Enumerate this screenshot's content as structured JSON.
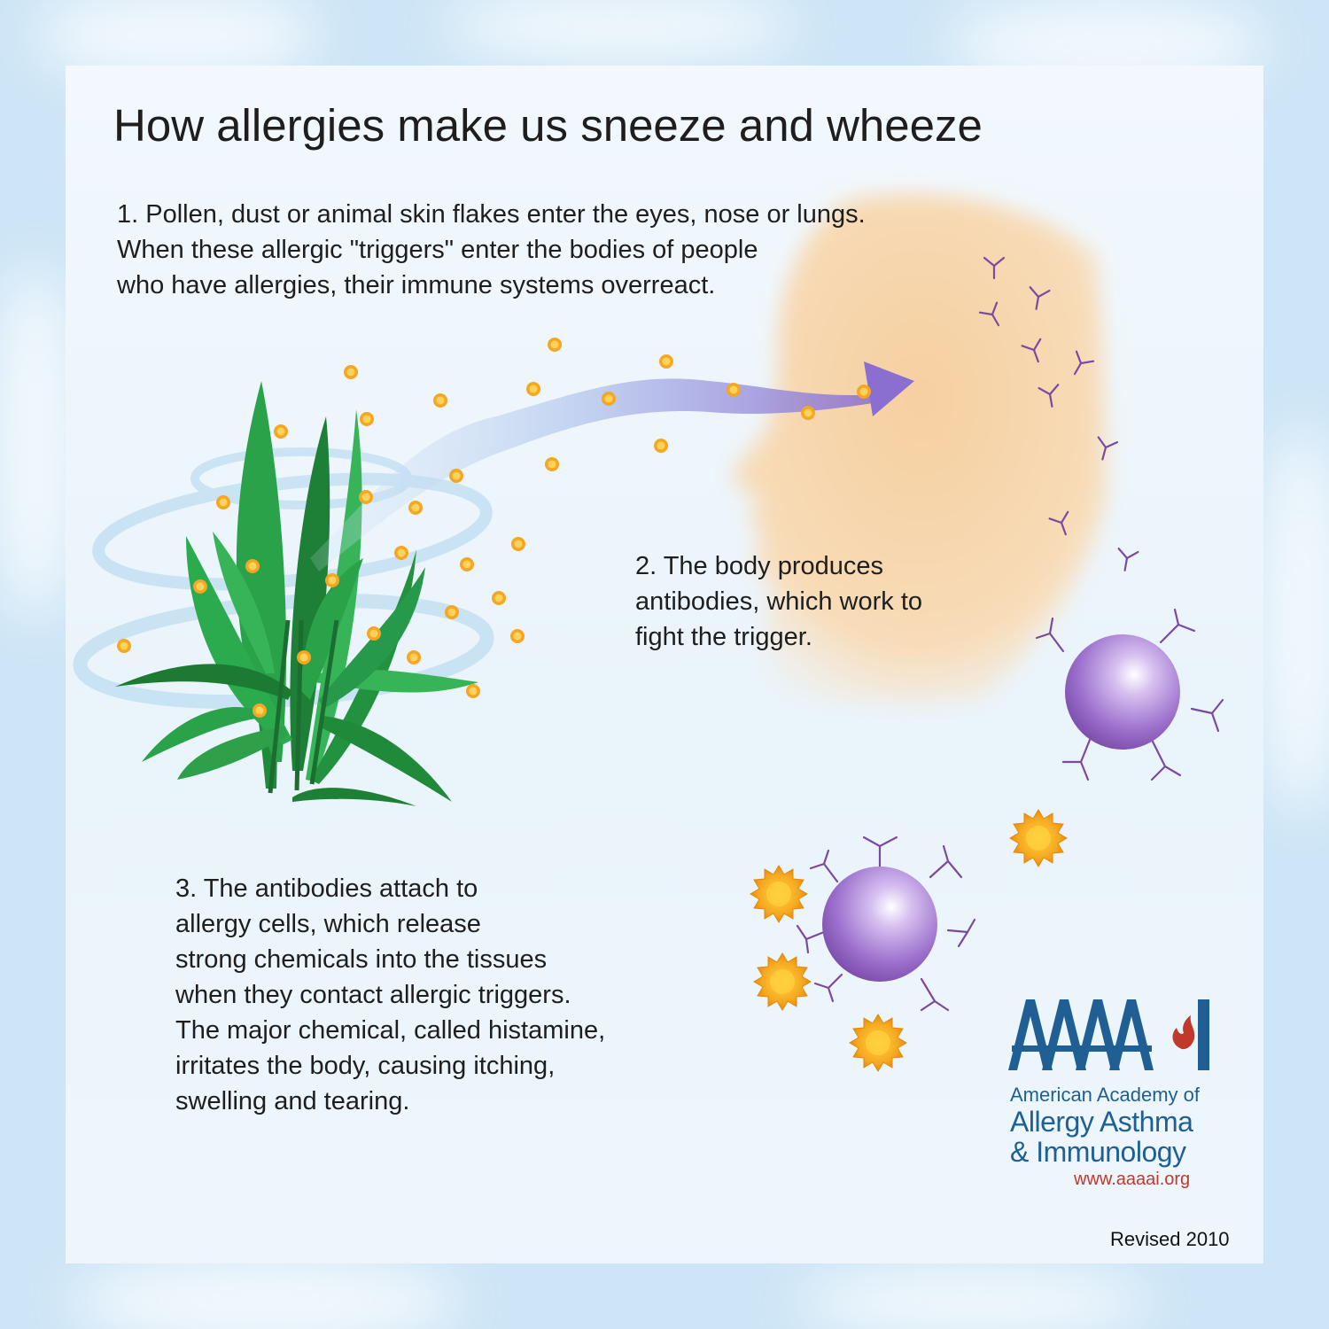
{
  "title": "How allergies make us sneeze and wheeze",
  "steps": {
    "one": [
      "1. Pollen, dust or animal skin flakes enter the eyes, nose or lungs.",
      "When these allergic \"triggers\" enter the bodies of people",
      "who have allergies, their immune systems overreact."
    ],
    "two": [
      "2. The body produces",
      "antibodies, which work to",
      "fight the trigger."
    ],
    "three": [
      "3. The antibodies attach to",
      "allergy cells, which release",
      "strong chemicals into the tissues",
      "when they contact allergic triggers.",
      "The major chemical, called histamine,",
      "irritates the body, causing itching,",
      "swelling and tearing."
    ]
  },
  "logo": {
    "mark": "AAAAI",
    "name_line1": "American Academy of",
    "name_line2": "Allergy Asthma",
    "name_line3": "& Immunology",
    "url": "www.aaaai.org"
  },
  "revised": "Revised 2010",
  "colors": {
    "text": "#1e1e1e",
    "brand_blue": "#1f5f93",
    "brand_red": "#c0392b",
    "antibody": "#7a4aa0",
    "cell": "#8f5fc0",
    "pollen": "#f5a623",
    "leaf": "#2fa04a",
    "face": "#f6d3a8"
  }
}
